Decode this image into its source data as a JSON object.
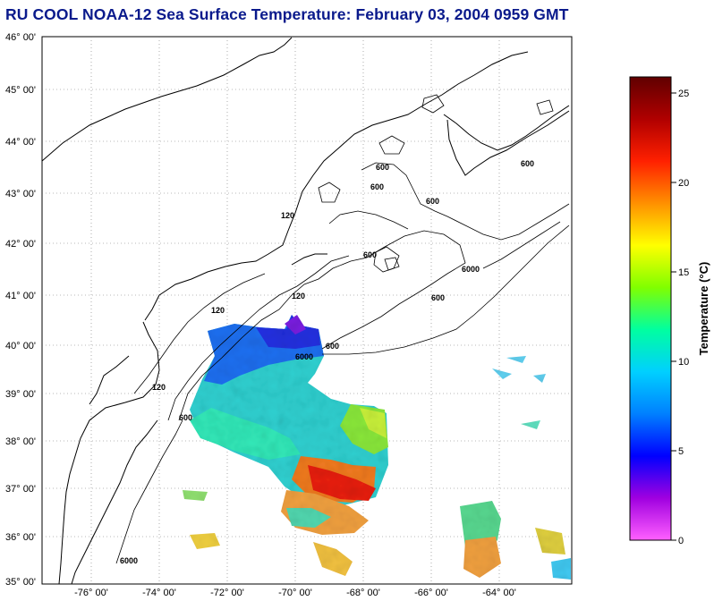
{
  "title": "RU COOL  NOAA-12  Sea Surface Temperature:  February 03, 2004 0959 GMT",
  "map": {
    "lat_labels": [
      "46° 00'",
      "45° 00'",
      "44° 00'",
      "43° 00'",
      "42° 00'",
      "41° 00'",
      "40° 00'",
      "39° 00'",
      "38° 00'",
      "37° 00'",
      "36° 00'",
      "35° 00'"
    ],
    "lon_labels": [
      "-76° 00'",
      "-74° 00'",
      "-72° 00'",
      "-70° 00'",
      "-68° 00'",
      "-66° 00'",
      "-64° 00'"
    ],
    "contour_labels": [
      "120",
      "120",
      "120",
      "120",
      "600",
      "600",
      "600",
      "600",
      "600",
      "600",
      "600",
      "600",
      "6000",
      "6000",
      "6000"
    ]
  },
  "colorbar": {
    "label": "Temperature (°C)",
    "ticks": [
      "25",
      "20",
      "15",
      "10",
      "5",
      "0"
    ],
    "range": [
      0,
      26
    ],
    "colors": [
      "#ff60ff",
      "#a000e0",
      "#0000ff",
      "#0080ff",
      "#00d0ff",
      "#00ffa0",
      "#80ff00",
      "#ffff00",
      "#ff9000",
      "#ff2000",
      "#b00000",
      "#600000"
    ]
  }
}
